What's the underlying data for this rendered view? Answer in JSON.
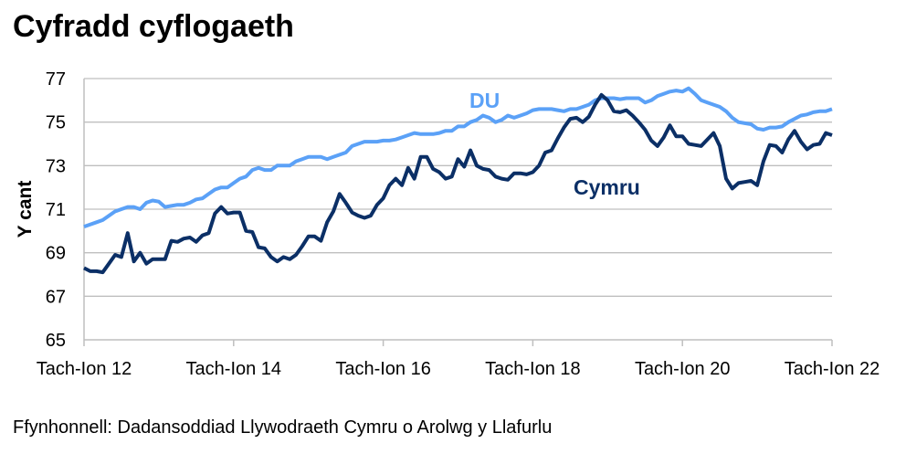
{
  "title": "Cyfradd cyflogaeth",
  "source": "Ffynhonnell: Dadansoddiad Llywodraeth Cymru o Arolwg y Llafurlu",
  "chart_data": {
    "type": "line",
    "title": "Cyfradd cyflogaeth",
    "xlabel": "",
    "ylabel": "Y cant",
    "ylim": [
      65,
      77
    ],
    "yticks": [
      65,
      67,
      69,
      71,
      73,
      75,
      77
    ],
    "x_tick_labels": [
      "Tach-Ion 12",
      "Tach-Ion 14",
      "Tach-Ion 16",
      "Tach-Ion 18",
      "Tach-Ion 20",
      "Tach-Ion 22"
    ],
    "x_tick_positions": [
      0,
      24,
      48,
      72,
      96,
      120
    ],
    "x_period": "monthly rolling quarters, Tach-Ion 12 to Tach-Ion 22",
    "grid": true,
    "legend": "inline labels",
    "series": [
      {
        "name": "DU",
        "color": "#5ba1f7",
        "values": [
          70.2,
          70.3,
          70.4,
          70.5,
          70.7,
          70.9,
          71.0,
          71.1,
          71.1,
          71.0,
          71.3,
          71.4,
          71.35,
          71.1,
          71.15,
          71.2,
          71.2,
          71.3,
          71.45,
          71.5,
          71.7,
          71.9,
          72.0,
          72.0,
          72.2,
          72.4,
          72.5,
          72.8,
          72.9,
          72.8,
          72.8,
          73.0,
          73.0,
          73.0,
          73.2,
          73.3,
          73.4,
          73.4,
          73.4,
          73.3,
          73.4,
          73.5,
          73.6,
          73.9,
          74.0,
          74.1,
          74.1,
          74.1,
          74.15,
          74.15,
          74.2,
          74.3,
          74.4,
          74.5,
          74.45,
          74.45,
          74.45,
          74.5,
          74.6,
          74.6,
          74.8,
          74.8,
          75.0,
          75.1,
          75.3,
          75.2,
          75.0,
          75.1,
          75.3,
          75.2,
          75.3,
          75.4,
          75.55,
          75.6,
          75.6,
          75.6,
          75.55,
          75.5,
          75.6,
          75.6,
          75.7,
          75.8,
          76.0,
          76.1,
          76.1,
          76.1,
          76.05,
          76.1,
          76.1,
          76.1,
          75.9,
          76.0,
          76.2,
          76.3,
          76.4,
          76.45,
          76.4,
          76.55,
          76.3,
          76.0,
          75.9,
          75.8,
          75.7,
          75.5,
          75.2,
          75.0,
          74.95,
          74.9,
          74.7,
          74.65,
          74.75,
          74.75,
          74.8,
          75.0,
          75.15,
          75.3,
          75.35,
          75.45,
          75.5,
          75.5,
          75.6
        ]
      },
      {
        "name": "Cymru",
        "color": "#0b2f66",
        "values": [
          68.3,
          68.15,
          68.15,
          68.1,
          68.5,
          68.9,
          68.8,
          69.9,
          68.6,
          69.0,
          68.5,
          68.7,
          68.7,
          68.7,
          69.55,
          69.5,
          69.65,
          69.7,
          69.5,
          69.8,
          69.9,
          70.8,
          71.1,
          70.8,
          70.85,
          70.85,
          70.0,
          69.95,
          69.25,
          69.2,
          68.8,
          68.6,
          68.8,
          68.7,
          68.9,
          69.3,
          69.75,
          69.75,
          69.55,
          70.4,
          70.9,
          71.7,
          71.3,
          70.85,
          70.7,
          70.6,
          70.7,
          71.2,
          71.5,
          72.1,
          72.4,
          72.1,
          72.9,
          72.4,
          73.4,
          73.4,
          72.85,
          72.7,
          72.4,
          72.5,
          73.3,
          72.95,
          73.7,
          73.0,
          72.85,
          72.8,
          72.5,
          72.4,
          72.35,
          72.65,
          72.65,
          72.6,
          72.7,
          73.0,
          73.6,
          73.7,
          74.25,
          74.75,
          75.15,
          75.2,
          75.0,
          75.25,
          75.8,
          76.25,
          76.0,
          75.5,
          75.45,
          75.55,
          75.3,
          75.0,
          74.65,
          74.15,
          73.9,
          74.3,
          74.85,
          74.35,
          74.35,
          74.0,
          73.95,
          73.9,
          74.2,
          74.5,
          73.9,
          72.4,
          71.95,
          72.2,
          72.25,
          72.3,
          72.1,
          73.2,
          73.95,
          73.9,
          73.6,
          74.2,
          74.6,
          74.1,
          73.75,
          73.95,
          74.0,
          74.5,
          74.4
        ]
      }
    ]
  }
}
